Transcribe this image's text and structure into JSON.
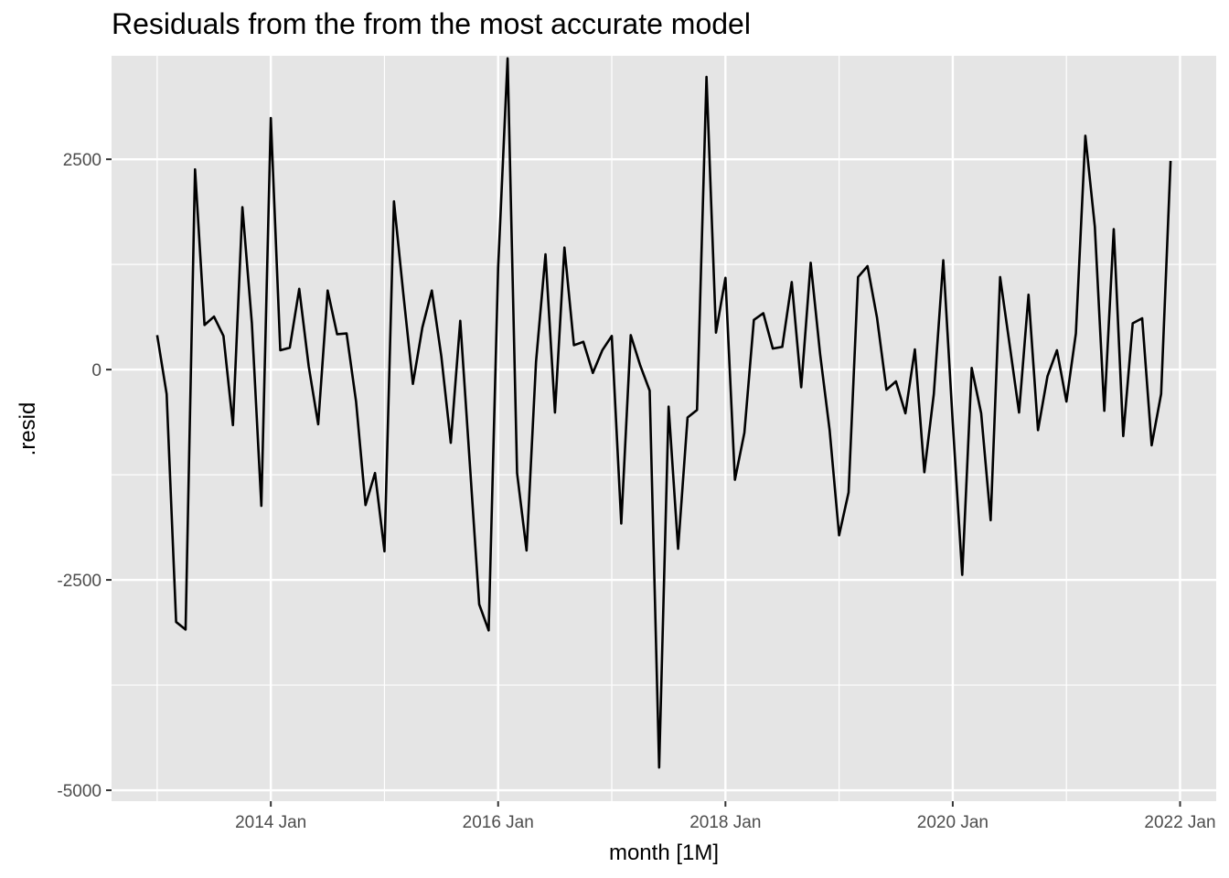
{
  "chart_data": {
    "type": "line",
    "title": "Residuals from the from the most accurate model",
    "xlabel": "month [1M]",
    "ylabel": ".resid",
    "start_month": "2013-01",
    "x_ticks": [
      {
        "label": "2014 Jan",
        "month": "2014-01"
      },
      {
        "label": "2016 Jan",
        "month": "2016-01"
      },
      {
        "label": "2018 Jan",
        "month": "2018-01"
      },
      {
        "label": "2020 Jan",
        "month": "2020-01"
      },
      {
        "label": "2022 Jan",
        "month": "2022-01"
      }
    ],
    "y_ticks": [
      {
        "label": "-5000",
        "value": -5000
      },
      {
        "label": "-2500",
        "value": -2500
      },
      {
        "label": "0",
        "value": 0
      },
      {
        "label": "2500",
        "value": 2500
      }
    ],
    "ylim": [
      -5130,
      3730
    ],
    "grid": true,
    "colors": {
      "panel": "#e5e5e5",
      "grid": "#ffffff",
      "line": "#000000"
    },
    "series": [
      {
        "values": [
          410,
          -290,
          -3000,
          -3090,
          2380,
          530,
          630,
          400,
          -660,
          1930,
          550,
          -1620,
          2990,
          230,
          260,
          960,
          40,
          -650,
          940,
          420,
          430,
          -380,
          -1610,
          -1230,
          -2160,
          2000,
          890,
          -170,
          500,
          940,
          160,
          -870,
          580,
          -1100,
          -2790,
          -3100,
          1210,
          3700,
          -1230,
          -2150,
          90,
          1370,
          -510,
          1450,
          290,
          330,
          -40,
          230,
          400,
          -1830,
          410,
          50,
          -250,
          -4730,
          -440,
          -2130,
          -570,
          -480,
          3480,
          440,
          1090,
          -1310,
          -750,
          590,
          670,
          250,
          270,
          1040,
          -210,
          1270,
          180,
          -720,
          -1970,
          -1460,
          1100,
          1230,
          620,
          -240,
          -140,
          -520,
          240,
          -1220,
          -290,
          1300,
          -630,
          -2440,
          20,
          -520,
          -1790,
          1100,
          300,
          -510,
          890,
          -720,
          -80,
          230,
          -380,
          430,
          2780,
          1700,
          -490,
          1670,
          -790,
          550,
          610,
          -900,
          -290,
          2480
        ]
      }
    ]
  }
}
